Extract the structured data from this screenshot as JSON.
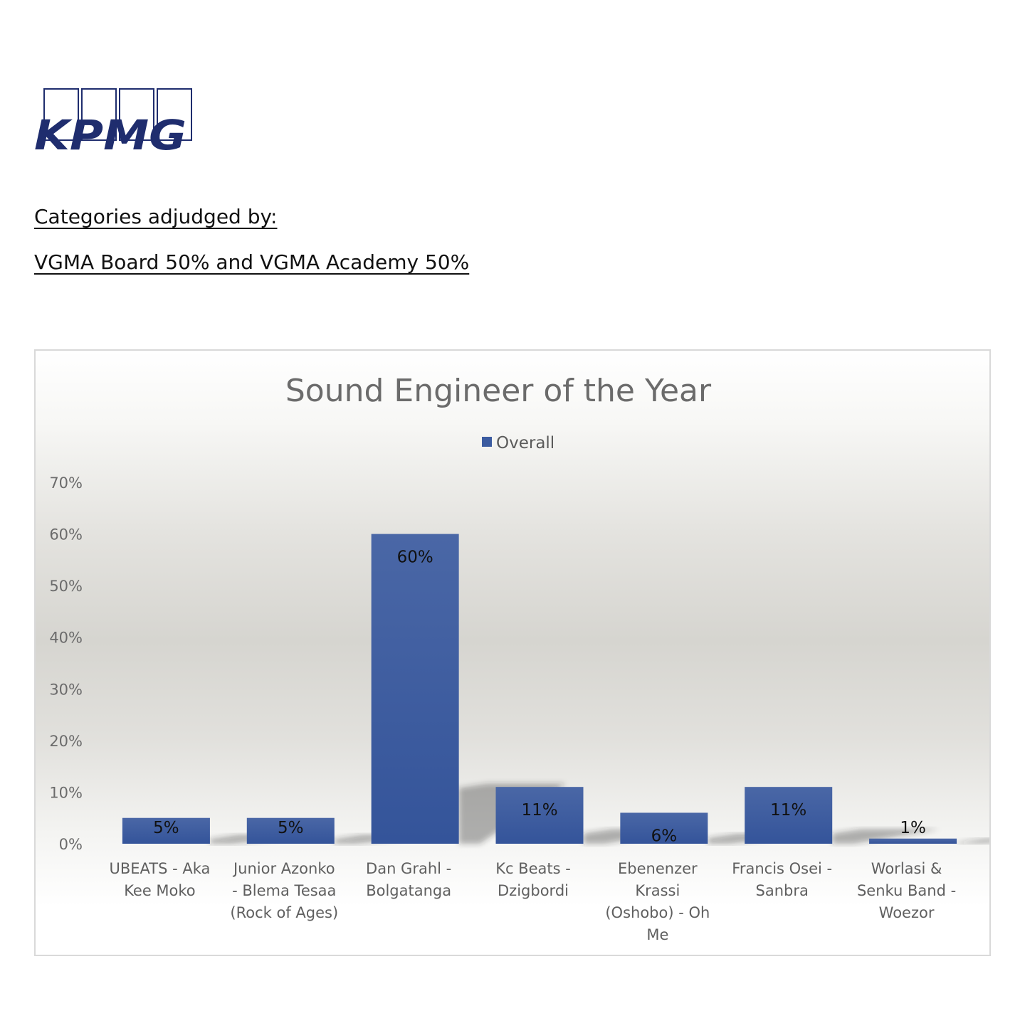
{
  "logo": {
    "text": "KPMG",
    "color": "#1f2d6e"
  },
  "headings": {
    "line1": "Categories adjudged by:",
    "line2": "VGMA Board 50% and VGMA Academy 50%"
  },
  "chart_data": {
    "type": "bar",
    "title": "Sound Engineer of the Year",
    "legend": "top",
    "grid": false,
    "ylim": [
      0,
      70
    ],
    "yticks": [
      "0%",
      "10%",
      "20%",
      "30%",
      "40%",
      "50%",
      "60%",
      "70%"
    ],
    "categories": [
      "UBEATS - Aka Kee Moko",
      "Junior Azonko - Blema Tesaa (Rock of Ages)",
      "Dan Grahl - Bolgatanga",
      "Kc Beats - Dzigbordi",
      "Ebenenzer Krassi (Oshobo) - Oh Me",
      "Francis Osei - Sanbra",
      "Worlasi & Senku Band - Woezor"
    ],
    "category_lines": [
      [
        "UBEATS - Aka",
        "Kee Moko"
      ],
      [
        "Junior Azonko",
        "- Blema Tesaa",
        "(Rock of Ages)"
      ],
      [
        "Dan Grahl -",
        "Bolgatanga"
      ],
      [
        "Kc Beats -",
        "Dzigbordi"
      ],
      [
        "Ebenenzer",
        "Krassi",
        "(Oshobo) - Oh",
        "Me"
      ],
      [
        "Francis Osei -",
        "Sanbra"
      ],
      [
        "Worlasi &",
        "Senku Band -",
        "Woezor"
      ]
    ],
    "series": [
      {
        "name": "Overall",
        "color": "#3b5ba0",
        "values": [
          5,
          5,
          60,
          11,
          6,
          11,
          1
        ],
        "labels": [
          "5%",
          "5%",
          "60%",
          "11%",
          "6%",
          "11%",
          "1%"
        ]
      }
    ]
  }
}
